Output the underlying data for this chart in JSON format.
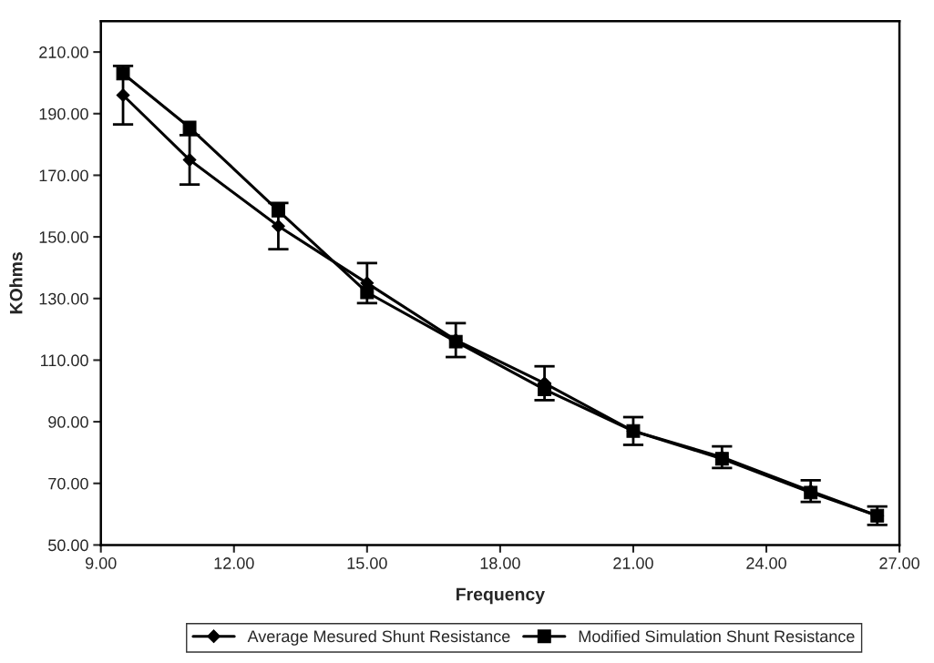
{
  "chart_data": {
    "type": "line",
    "xlabel": "Frequency",
    "ylabel": "KOhms",
    "x": [
      9.5,
      11,
      13,
      15,
      17,
      19,
      21,
      23,
      25,
      26.5
    ],
    "series": [
      {
        "name": "Average Mesured Shunt Resistance",
        "color": "#000000",
        "marker": "diamond",
        "values": [
          196,
          175,
          153.5,
          135,
          116.5,
          102.5,
          87,
          78.5,
          67.5,
          59.5
        ],
        "errors": [
          9.5,
          8,
          7.5,
          6.5,
          5.5,
          5.5,
          4.5,
          3.5,
          3.5,
          3
        ]
      },
      {
        "name": "Modified Simulation Shunt Resistance",
        "color": "#000000",
        "marker": "square",
        "values": [
          203,
          185.5,
          158.5,
          132,
          116,
          100.5,
          87,
          78,
          67,
          59.5
        ]
      }
    ],
    "xlim": [
      9,
      27
    ],
    "xticks": [
      {
        "value": 9,
        "label": "9.00"
      },
      {
        "value": 12,
        "label": "12.00"
      },
      {
        "value": 15,
        "label": "15.00"
      },
      {
        "value": 18,
        "label": "18.00"
      },
      {
        "value": 21,
        "label": "21.00"
      },
      {
        "value": 24,
        "label": "24.00"
      },
      {
        "value": 27,
        "label": "27.00"
      }
    ],
    "ylim": [
      50,
      220
    ],
    "yticks": [
      {
        "value": 50,
        "label": "50.00"
      },
      {
        "value": 70,
        "label": "70.00"
      },
      {
        "value": 90,
        "label": "90.00"
      },
      {
        "value": 110,
        "label": "110.00"
      },
      {
        "value": 130,
        "label": "130.00"
      },
      {
        "value": 150,
        "label": "150.00"
      },
      {
        "value": 170,
        "label": "170.00"
      },
      {
        "value": 190,
        "label": "190.00"
      },
      {
        "value": 210,
        "label": "210.00"
      }
    ],
    "grid": false,
    "legend": "bottom",
    "line_style": "solid"
  }
}
